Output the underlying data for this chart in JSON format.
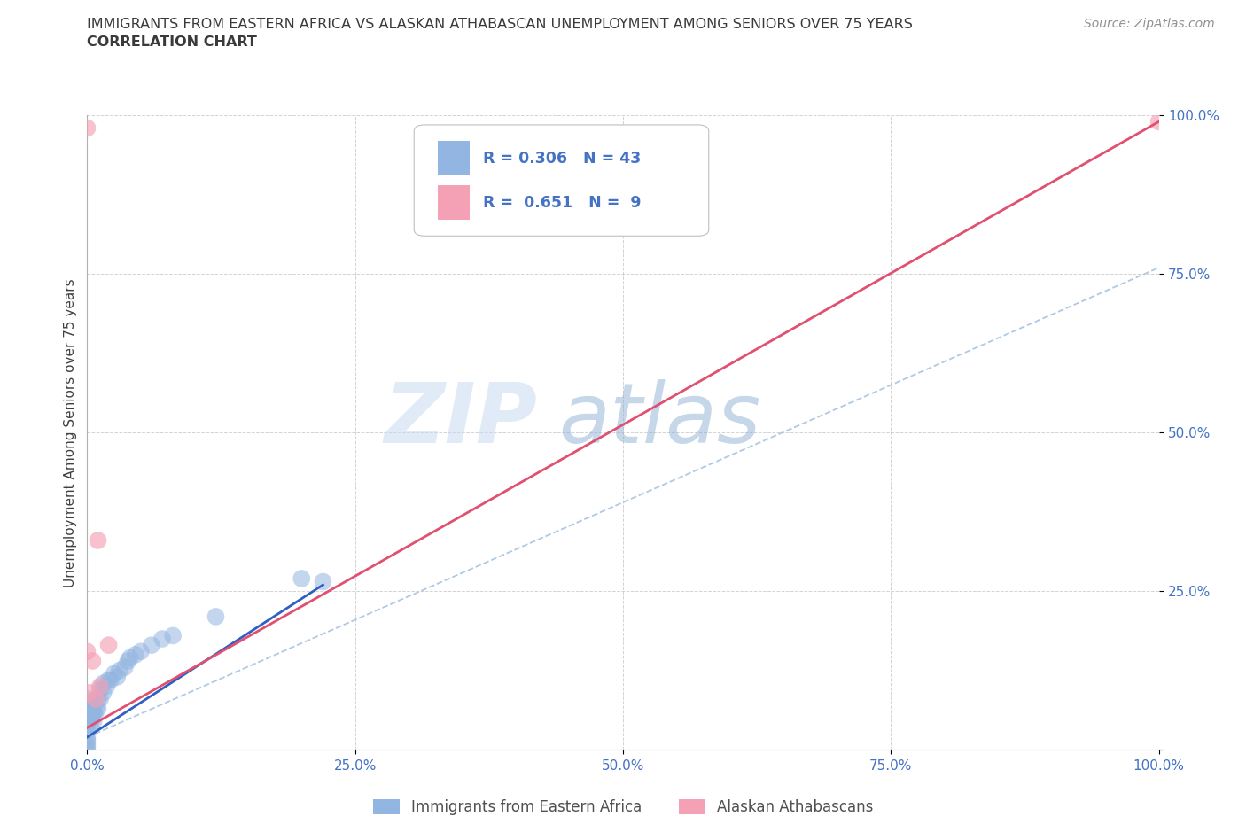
{
  "title_line1": "IMMIGRANTS FROM EASTERN AFRICA VS ALASKAN ATHABASCAN UNEMPLOYMENT AMONG SENIORS OVER 75 YEARS",
  "title_line2": "CORRELATION CHART",
  "source_text": "Source: ZipAtlas.com",
  "ylabel": "Unemployment Among Seniors over 75 years",
  "watermark_zip": "ZIP",
  "watermark_atlas": "atlas",
  "xlim": [
    0,
    1.0
  ],
  "ylim": [
    0,
    1.0
  ],
  "xtick_labels": [
    "0.0%",
    "25.0%",
    "50.0%",
    "75.0%",
    "100.0%"
  ],
  "xtick_vals": [
    0.0,
    0.25,
    0.5,
    0.75,
    1.0
  ],
  "ytick_labels": [
    "",
    "25.0%",
    "50.0%",
    "75.0%",
    "100.0%"
  ],
  "ytick_vals": [
    0.0,
    0.25,
    0.5,
    0.75,
    1.0
  ],
  "blue_R": 0.306,
  "blue_N": 43,
  "pink_R": 0.651,
  "pink_N": 9,
  "blue_color": "#93b5e1",
  "pink_color": "#f4a0b5",
  "blue_line_color": "#3060c0",
  "pink_line_color": "#e05070",
  "dash_line_color": "#a0c0e0",
  "legend_text_color": "#4472c4",
  "title_color": "#3a3a3a",
  "source_color": "#909090",
  "blue_scatter_x": [
    0.0,
    0.0,
    0.0,
    0.0,
    0.0,
    0.0,
    0.0,
    0.0,
    0.0,
    0.0,
    0.003,
    0.003,
    0.004,
    0.004,
    0.005,
    0.005,
    0.006,
    0.006,
    0.007,
    0.008,
    0.01,
    0.01,
    0.012,
    0.012,
    0.015,
    0.015,
    0.018,
    0.02,
    0.022,
    0.025,
    0.028,
    0.03,
    0.035,
    0.038,
    0.04,
    0.045,
    0.05,
    0.06,
    0.07,
    0.08,
    0.12,
    0.2,
    0.22
  ],
  "blue_scatter_y": [
    0.0,
    0.005,
    0.01,
    0.015,
    0.02,
    0.03,
    0.04,
    0.05,
    0.06,
    0.08,
    0.04,
    0.055,
    0.06,
    0.075,
    0.05,
    0.065,
    0.045,
    0.06,
    0.055,
    0.065,
    0.065,
    0.08,
    0.08,
    0.095,
    0.09,
    0.105,
    0.1,
    0.11,
    0.11,
    0.12,
    0.115,
    0.125,
    0.13,
    0.14,
    0.145,
    0.15,
    0.155,
    0.165,
    0.175,
    0.18,
    0.21,
    0.27,
    0.265
  ],
  "pink_scatter_x": [
    0.0,
    0.0,
    0.002,
    0.005,
    0.008,
    0.01,
    0.012,
    0.02,
    1.0
  ],
  "pink_scatter_y": [
    0.98,
    0.155,
    0.09,
    0.14,
    0.08,
    0.33,
    0.1,
    0.165,
    0.99
  ],
  "blue_line_x0": 0.0,
  "blue_line_y0": 0.02,
  "blue_line_x1": 0.22,
  "blue_line_y1": 0.26,
  "pink_line_x0": 0.0,
  "pink_line_y0": 0.035,
  "pink_line_x1": 1.0,
  "pink_line_y1": 0.99,
  "dash_line_x0": 0.0,
  "dash_line_y0": 0.02,
  "dash_line_x1": 1.0,
  "dash_line_y1": 0.76
}
